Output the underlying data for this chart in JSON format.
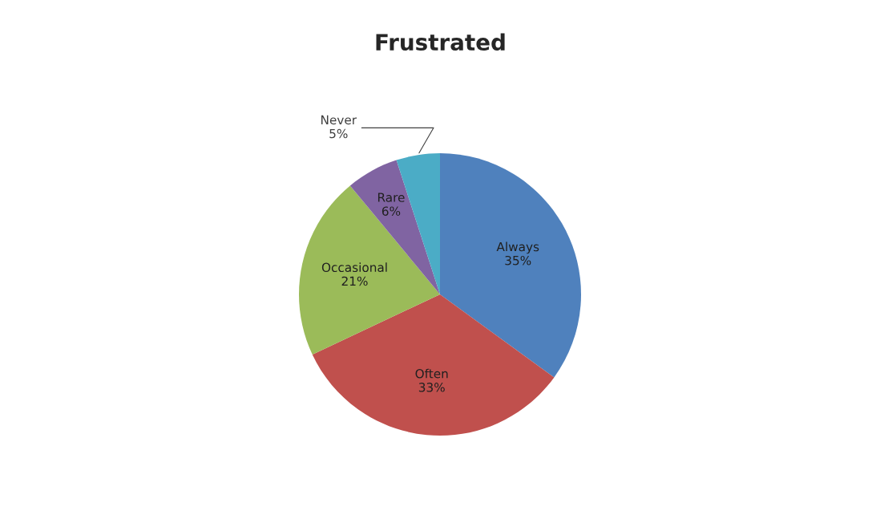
{
  "chart_data": {
    "type": "pie",
    "title": "Frustrated",
    "categories": [
      "Always",
      "Often",
      "Occasional",
      "Rare",
      "Never"
    ],
    "values": [
      35,
      33,
      21,
      6,
      5
    ],
    "value_labels": [
      "35%",
      "33%",
      "21%",
      "6%",
      "5%"
    ],
    "colors": [
      "#4f81bd",
      "#c0504d",
      "#9bbb59",
      "#8064a2",
      "#4bacc6"
    ],
    "legend": false
  }
}
